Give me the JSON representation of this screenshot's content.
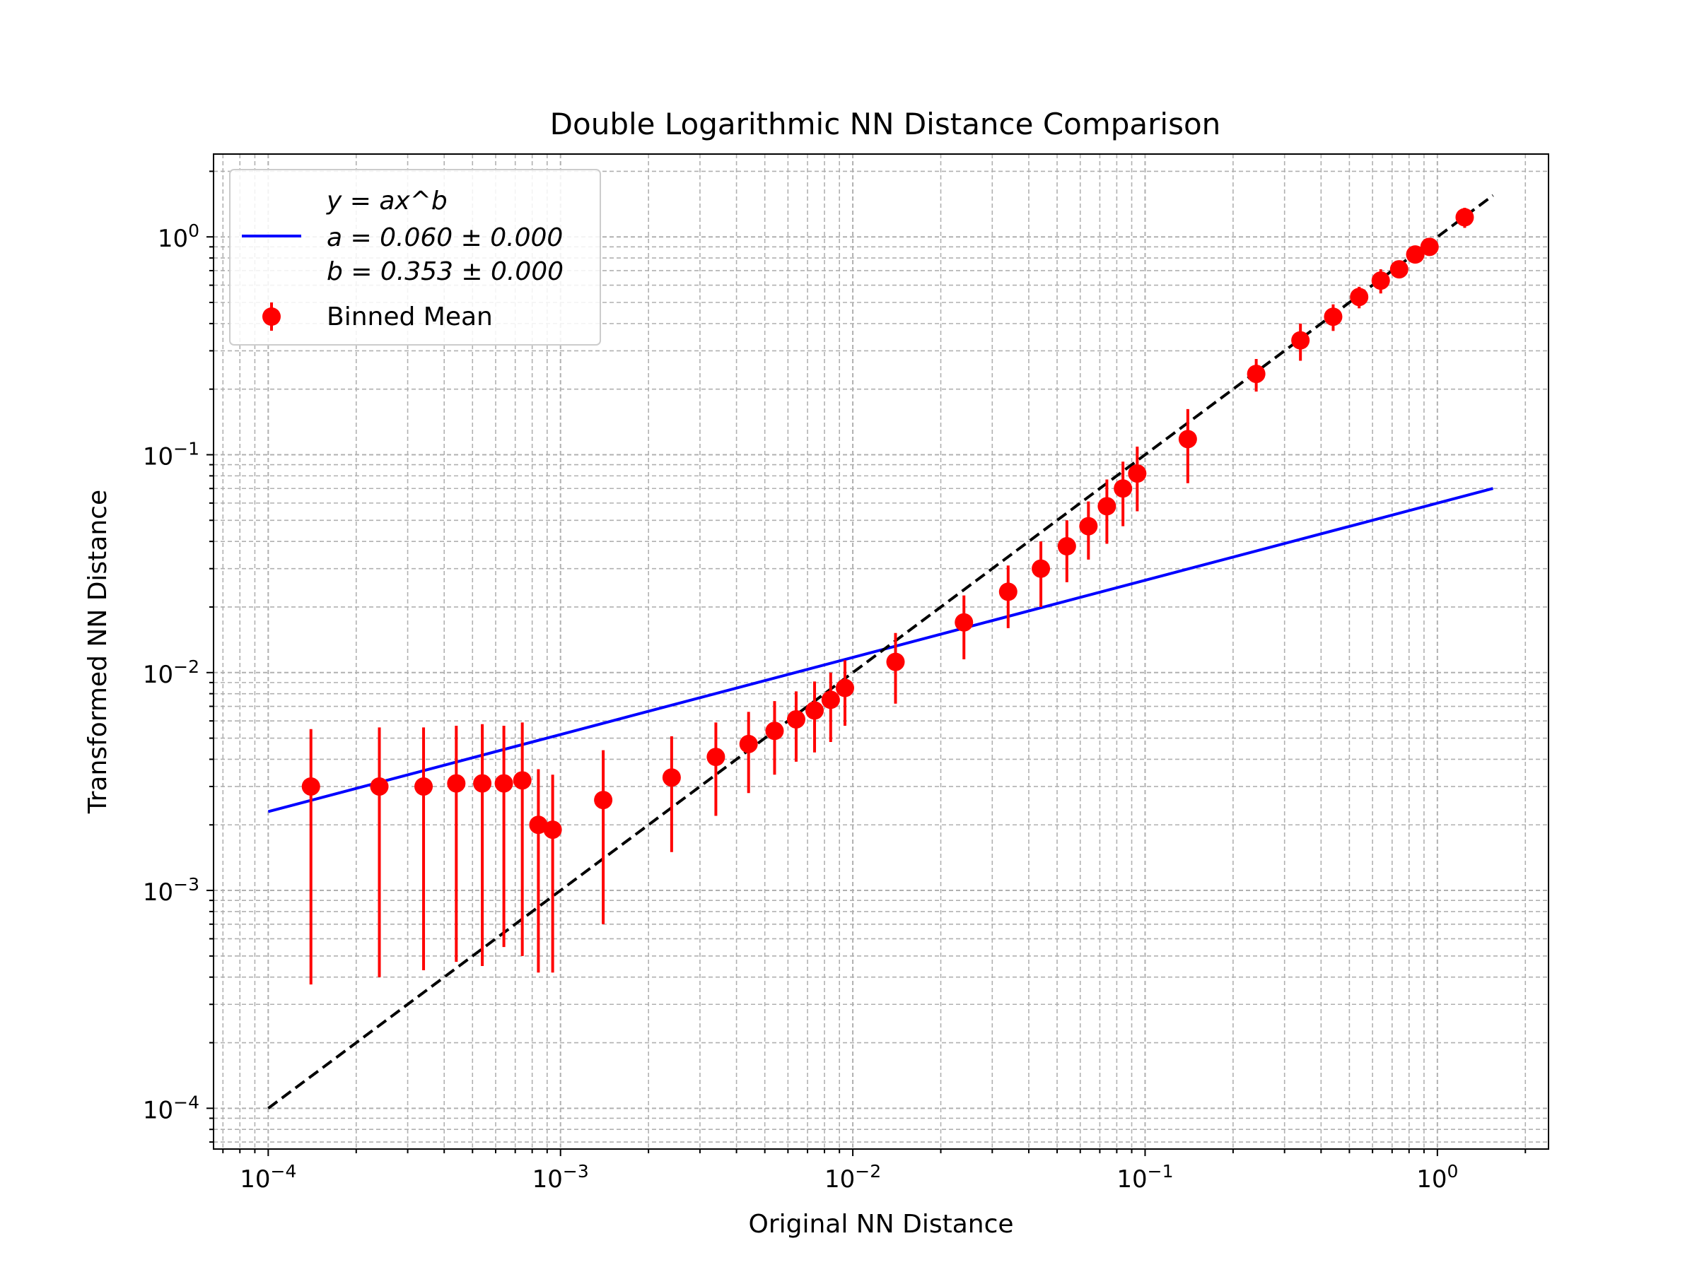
{
  "chart_data": {
    "type": "scatter",
    "title": "Double Logarithmic NN Distance Comparison",
    "xlabel": "Original NN Distance",
    "ylabel": "Transformed NN Distance",
    "xscale": "log",
    "yscale": "log",
    "xlim": [
      6.5e-05,
      2.4
    ],
    "ylim": [
      6.5e-05,
      2.4
    ],
    "grid": "major and minor, dashed gray",
    "legend_position": "upper-left",
    "x_tick_labels": [
      "10^-4",
      "10^-3",
      "10^-2",
      "10^-1",
      "10^0"
    ],
    "y_tick_labels": [
      "10^-4",
      "10^-3",
      "10^-2",
      "10^-1",
      "10^0"
    ],
    "legend": {
      "fit_formula": "y = ax^b",
      "fit_a": "a = 0.060 ± 0.000",
      "fit_b": "b = 0.353 ± 0.000",
      "binned_label": "Binned Mean"
    },
    "colors": {
      "fit": "#0000ff",
      "binned": "#ff0000",
      "identity": "#000000",
      "grid": "#b0b0b0"
    },
    "series": [
      {
        "name": "Binned Mean",
        "kind": "errorbar",
        "color": "#ff0000",
        "points": [
          {
            "x": 0.00014,
            "y": 0.003,
            "ylo": 0.00037,
            "yhi": 0.0055
          },
          {
            "x": 0.00024,
            "y": 0.003,
            "ylo": 0.0004,
            "yhi": 0.0056
          },
          {
            "x": 0.00034,
            "y": 0.003,
            "ylo": 0.00043,
            "yhi": 0.0056
          },
          {
            "x": 0.00044,
            "y": 0.0031,
            "ylo": 0.00047,
            "yhi": 0.0057
          },
          {
            "x": 0.00054,
            "y": 0.0031,
            "ylo": 0.00045,
            "yhi": 0.0058
          },
          {
            "x": 0.00064,
            "y": 0.0031,
            "ylo": 0.00055,
            "yhi": 0.0057
          },
          {
            "x": 0.00074,
            "y": 0.0032,
            "ylo": 0.0005,
            "yhi": 0.0059
          },
          {
            "x": 0.00084,
            "y": 0.002,
            "ylo": 0.00042,
            "yhi": 0.0036
          },
          {
            "x": 0.00094,
            "y": 0.0019,
            "ylo": 0.00042,
            "yhi": 0.0034
          },
          {
            "x": 0.0014,
            "y": 0.0026,
            "ylo": 0.0007,
            "yhi": 0.0044
          },
          {
            "x": 0.0024,
            "y": 0.0033,
            "ylo": 0.0015,
            "yhi": 0.0051
          },
          {
            "x": 0.0034,
            "y": 0.0041,
            "ylo": 0.0022,
            "yhi": 0.0059
          },
          {
            "x": 0.0044,
            "y": 0.0047,
            "ylo": 0.0028,
            "yhi": 0.0066
          },
          {
            "x": 0.0054,
            "y": 0.0054,
            "ylo": 0.0034,
            "yhi": 0.0074
          },
          {
            "x": 0.0064,
            "y": 0.0061,
            "ylo": 0.0039,
            "yhi": 0.0082
          },
          {
            "x": 0.0074,
            "y": 0.0067,
            "ylo": 0.0043,
            "yhi": 0.0091
          },
          {
            "x": 0.0084,
            "y": 0.0075,
            "ylo": 0.0048,
            "yhi": 0.01
          },
          {
            "x": 0.0094,
            "y": 0.0085,
            "ylo": 0.0057,
            "yhi": 0.0114
          },
          {
            "x": 0.014,
            "y": 0.0112,
            "ylo": 0.0072,
            "yhi": 0.0152
          },
          {
            "x": 0.024,
            "y": 0.017,
            "ylo": 0.0115,
            "yhi": 0.0226
          },
          {
            "x": 0.034,
            "y": 0.0235,
            "ylo": 0.016,
            "yhi": 0.031
          },
          {
            "x": 0.044,
            "y": 0.03,
            "ylo": 0.02,
            "yhi": 0.04
          },
          {
            "x": 0.054,
            "y": 0.038,
            "ylo": 0.026,
            "yhi": 0.05
          },
          {
            "x": 0.064,
            "y": 0.047,
            "ylo": 0.033,
            "yhi": 0.061
          },
          {
            "x": 0.074,
            "y": 0.058,
            "ylo": 0.039,
            "yhi": 0.077
          },
          {
            "x": 0.084,
            "y": 0.07,
            "ylo": 0.047,
            "yhi": 0.093
          },
          {
            "x": 0.094,
            "y": 0.082,
            "ylo": 0.055,
            "yhi": 0.109
          },
          {
            "x": 0.14,
            "y": 0.118,
            "ylo": 0.074,
            "yhi": 0.162
          },
          {
            "x": 0.24,
            "y": 0.235,
            "ylo": 0.195,
            "yhi": 0.275
          },
          {
            "x": 0.34,
            "y": 0.335,
            "ylo": 0.27,
            "yhi": 0.4
          },
          {
            "x": 0.44,
            "y": 0.43,
            "ylo": 0.37,
            "yhi": 0.49
          },
          {
            "x": 0.54,
            "y": 0.53,
            "ylo": 0.47,
            "yhi": 0.59
          },
          {
            "x": 0.64,
            "y": 0.63,
            "ylo": 0.55,
            "yhi": 0.71
          },
          {
            "x": 0.74,
            "y": 0.71,
            "ylo": 0.65,
            "yhi": 0.77
          },
          {
            "x": 0.84,
            "y": 0.83,
            "ylo": 0.76,
            "yhi": 0.9
          },
          {
            "x": 0.94,
            "y": 0.9,
            "ylo": 0.84,
            "yhi": 0.96
          },
          {
            "x": 1.24,
            "y": 1.23,
            "ylo": 1.1,
            "yhi": 1.36
          }
        ]
      },
      {
        "name": "y = ax^b",
        "kind": "line",
        "style": "solid",
        "color": "#0000ff",
        "x": [
          0.0001,
          1.55
        ],
        "y": [
          0.0023,
          0.07
        ]
      },
      {
        "kind": "line",
        "style": "dashed",
        "color": "#000000",
        "x": [
          0.0001,
          1.55
        ],
        "y": [
          0.0001,
          1.55
        ]
      }
    ]
  }
}
